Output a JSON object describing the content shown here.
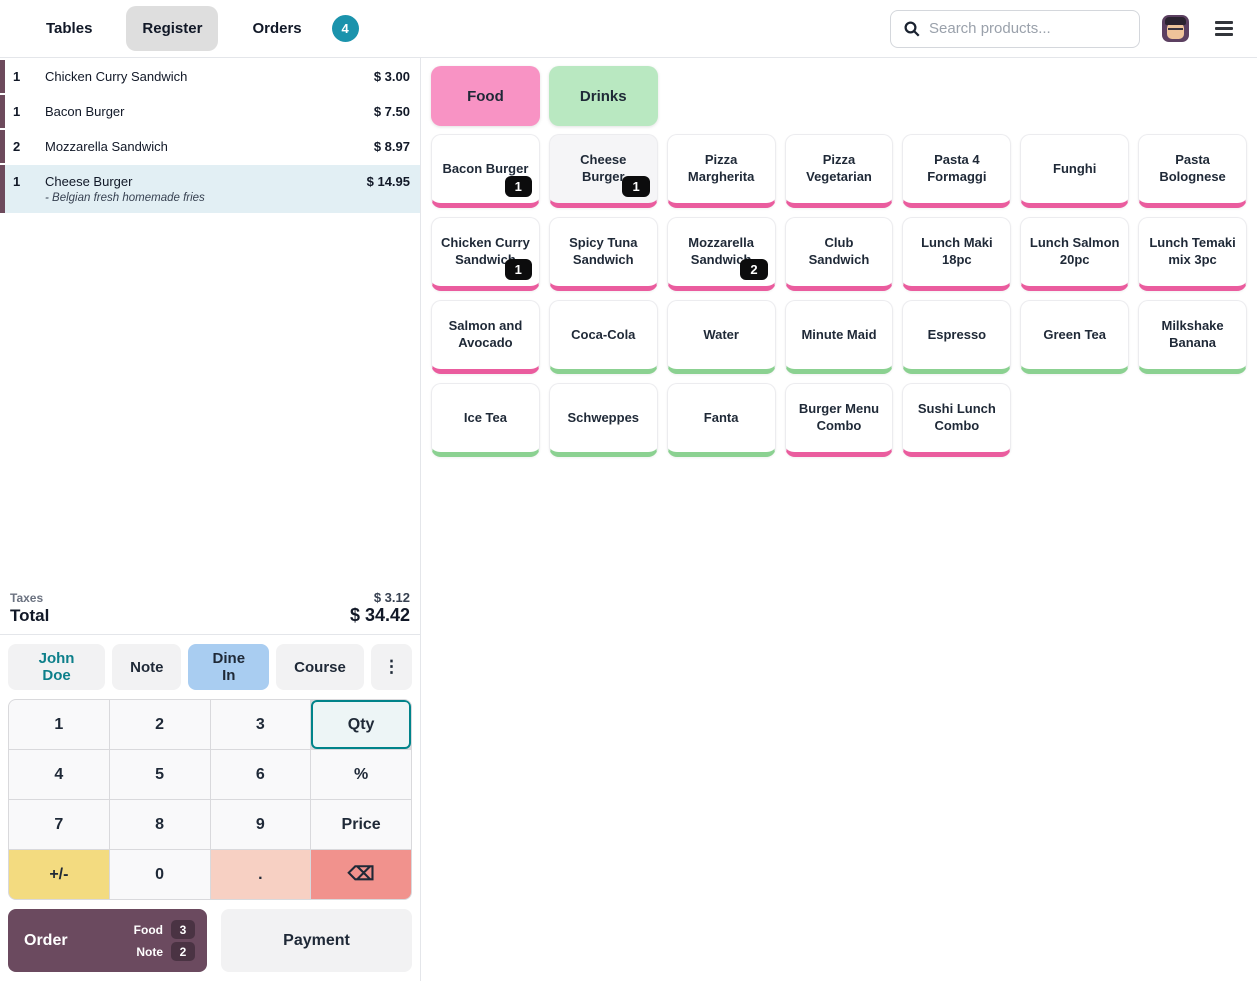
{
  "topbar": {
    "tabs": [
      {
        "label": "Tables",
        "active": false
      },
      {
        "label": "Register",
        "active": true
      },
      {
        "label": "Orders",
        "active": false
      }
    ],
    "orders_badge": "4",
    "search_placeholder": "Search products..."
  },
  "order_panel": {
    "lines": [
      {
        "qty": "1",
        "name": "Chicken Curry Sandwich",
        "price": "$ 3.00",
        "note": "",
        "selected": false
      },
      {
        "qty": "1",
        "name": "Bacon Burger",
        "price": "$ 7.50",
        "note": "",
        "selected": false
      },
      {
        "qty": "2",
        "name": "Mozzarella Sandwich",
        "price": "$ 8.97",
        "note": "",
        "selected": false
      },
      {
        "qty": "1",
        "name": "Cheese Burger",
        "price": "$ 14.95",
        "note": "- Belgian fresh homemade fries",
        "selected": true
      }
    ],
    "taxes_label": "Taxes",
    "taxes_value": "$ 3.12",
    "total_label": "Total",
    "total_value": "$ 34.42"
  },
  "controls": {
    "customer_label": "John Doe",
    "note_label": "Note",
    "dine_in_label": "Dine In",
    "course_label": "Course",
    "more_label": "⋮"
  },
  "numpad": {
    "keys": [
      {
        "label": "1",
        "style": "plain"
      },
      {
        "label": "2",
        "style": "plain"
      },
      {
        "label": "3",
        "style": "plain"
      },
      {
        "label": "Qty",
        "style": "active"
      },
      {
        "label": "4",
        "style": "plain"
      },
      {
        "label": "5",
        "style": "plain"
      },
      {
        "label": "6",
        "style": "plain"
      },
      {
        "label": "%",
        "style": "plain"
      },
      {
        "label": "7",
        "style": "plain"
      },
      {
        "label": "8",
        "style": "plain"
      },
      {
        "label": "9",
        "style": "plain"
      },
      {
        "label": "Price",
        "style": "plain"
      },
      {
        "label": "+/-",
        "style": "yellow"
      },
      {
        "label": "0",
        "style": "plain"
      },
      {
        "label": ".",
        "style": "peach"
      },
      {
        "label": "⌫",
        "style": "red"
      }
    ]
  },
  "actions": {
    "order_label": "Order",
    "order_badges": [
      {
        "label": "Food",
        "count": "3"
      },
      {
        "label": "Note",
        "count": "2"
      }
    ],
    "payment_label": "Payment"
  },
  "categories": [
    {
      "label": "Food",
      "accent": "pink"
    },
    {
      "label": "Drinks",
      "accent": "green"
    }
  ],
  "products": [
    {
      "name": "Bacon Burger",
      "accent": "pink",
      "badge": "1",
      "pressed": false
    },
    {
      "name": "Cheese Burger",
      "accent": "pink",
      "badge": "1",
      "pressed": true
    },
    {
      "name": "Pizza Margherita",
      "accent": "pink",
      "badge": "",
      "pressed": false
    },
    {
      "name": "Pizza Vegetarian",
      "accent": "pink",
      "badge": "",
      "pressed": false
    },
    {
      "name": "Pasta 4 Formaggi",
      "accent": "pink",
      "badge": "",
      "pressed": false
    },
    {
      "name": "Funghi",
      "accent": "pink",
      "badge": "",
      "pressed": false
    },
    {
      "name": "Pasta Bolognese",
      "accent": "pink",
      "badge": "",
      "pressed": false
    },
    {
      "name": "Chicken Curry Sandwich",
      "accent": "pink",
      "badge": "1",
      "pressed": false
    },
    {
      "name": "Spicy Tuna Sandwich",
      "accent": "pink",
      "badge": "",
      "pressed": false
    },
    {
      "name": "Mozzarella Sandwich",
      "accent": "pink",
      "badge": "2",
      "pressed": false
    },
    {
      "name": "Club Sandwich",
      "accent": "pink",
      "badge": "",
      "pressed": false
    },
    {
      "name": "Lunch Maki 18pc",
      "accent": "pink",
      "badge": "",
      "pressed": false
    },
    {
      "name": "Lunch Salmon 20pc",
      "accent": "pink",
      "badge": "",
      "pressed": false
    },
    {
      "name": "Lunch Temaki mix 3pc",
      "accent": "pink",
      "badge": "",
      "pressed": false
    },
    {
      "name": "Salmon and Avocado",
      "accent": "pink",
      "badge": "",
      "pressed": false
    },
    {
      "name": "Coca-Cola",
      "accent": "green",
      "badge": "",
      "pressed": false
    },
    {
      "name": "Water",
      "accent": "green",
      "badge": "",
      "pressed": false
    },
    {
      "name": "Minute Maid",
      "accent": "green",
      "badge": "",
      "pressed": false
    },
    {
      "name": "Espresso",
      "accent": "green",
      "badge": "",
      "pressed": false
    },
    {
      "name": "Green Tea",
      "accent": "green",
      "badge": "",
      "pressed": false
    },
    {
      "name": "Milkshake Banana",
      "accent": "green",
      "badge": "",
      "pressed": false
    },
    {
      "name": "Ice Tea",
      "accent": "green",
      "badge": "",
      "pressed": false
    },
    {
      "name": "Schweppes",
      "accent": "green",
      "badge": "",
      "pressed": false
    },
    {
      "name": "Fanta",
      "accent": "green",
      "badge": "",
      "pressed": false
    },
    {
      "name": "Burger Menu Combo",
      "accent": "pink",
      "badge": "",
      "pressed": false
    },
    {
      "name": "Sushi Lunch Combo",
      "accent": "pink",
      "badge": "",
      "pressed": false
    }
  ],
  "colors": {
    "accent_pink": "#ea5c9e",
    "accent_green": "#8bd191",
    "category_pink": "#f893c4",
    "category_green": "#b9e8c1",
    "teal_badge": "#1b93ac",
    "teal_text": "#0d7f8a",
    "dine_in_blue": "#a9cdf1",
    "order_plum": "#6b4a5f",
    "order_badge_plum": "#4a3343",
    "line_accent": "#6d4a5c",
    "selected_line_bg": "#e2eff4",
    "numpad_yellow": "#f3db80",
    "numpad_peach": "#f7d0c3",
    "numpad_red": "#f1928d",
    "qty_key_border": "#00838a"
  }
}
